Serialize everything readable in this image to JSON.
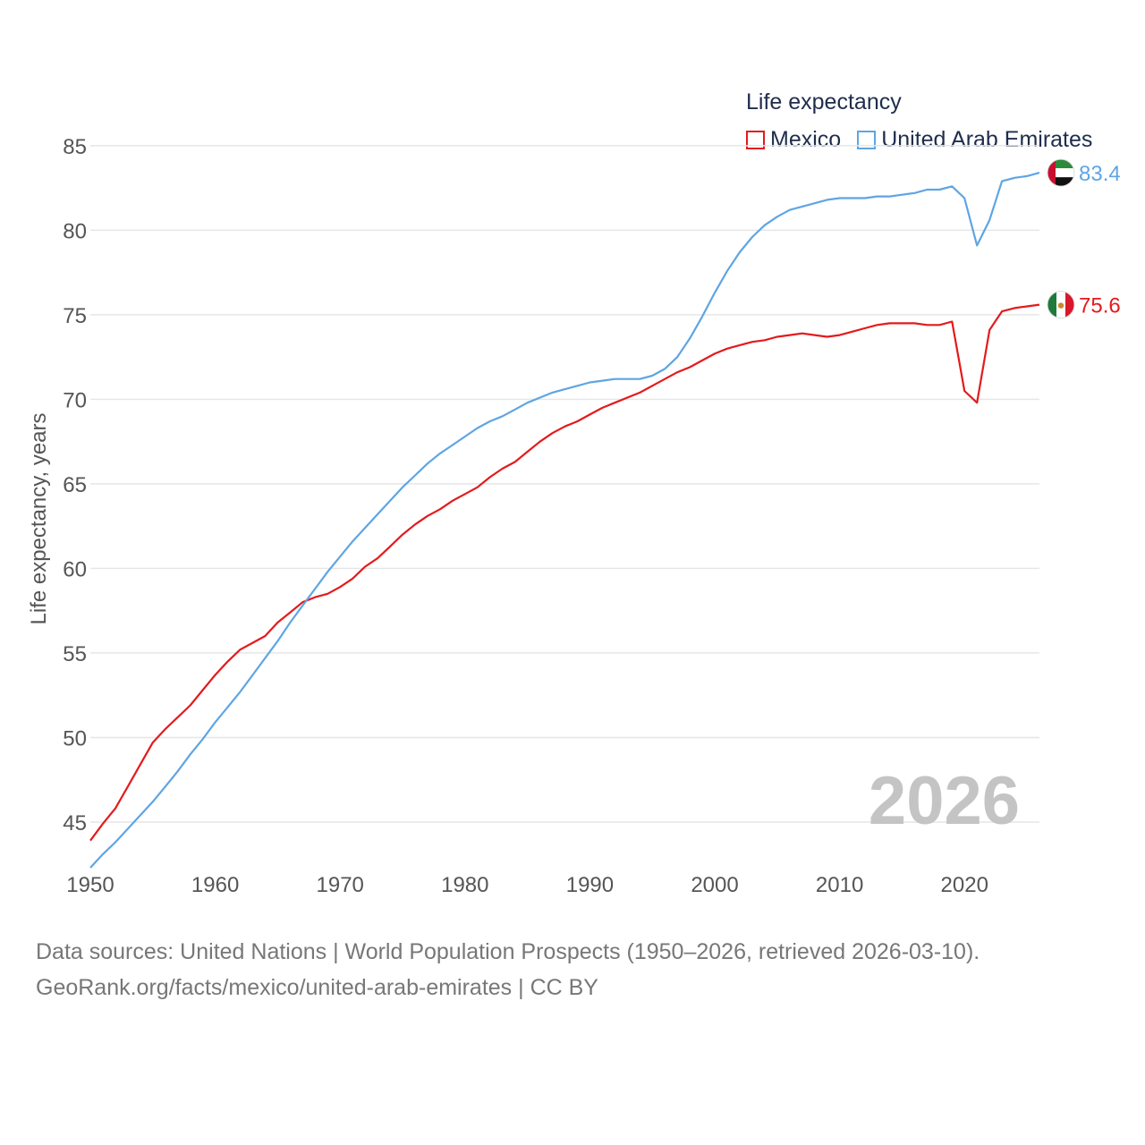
{
  "legend": {
    "title": "Life expectancy",
    "items": [
      {
        "label": "Mexico",
        "color": "#e41a1c"
      },
      {
        "label": "United Arab Emirates",
        "color": "#5ea5e4"
      }
    ]
  },
  "watermark_year": "2026",
  "footer": {
    "line1": "Data sources: United Nations | World Population Prospects (1950–2026, retrieved 2026-03-10).",
    "line2": "GeoRank.org/facts/mexico/united-arab-emirates | CC BY"
  },
  "chart_data": {
    "type": "line",
    "ylabel": "Life expectancy, years",
    "xlim": [
      1950,
      2026
    ],
    "ylim": [
      40.5,
      86
    ],
    "x_ticks": [
      "1950",
      "1960",
      "1970",
      "1980",
      "1990",
      "2000",
      "2010",
      "2020"
    ],
    "y_ticks": [
      "45",
      "50",
      "55",
      "60",
      "65",
      "70",
      "75",
      "80",
      "85"
    ],
    "x": [
      1950,
      1951,
      1952,
      1953,
      1954,
      1955,
      1956,
      1957,
      1958,
      1959,
      1960,
      1961,
      1962,
      1963,
      1964,
      1965,
      1966,
      1967,
      1968,
      1969,
      1970,
      1971,
      1972,
      1973,
      1974,
      1975,
      1976,
      1977,
      1978,
      1979,
      1980,
      1981,
      1982,
      1983,
      1984,
      1985,
      1986,
      1987,
      1988,
      1989,
      1990,
      1991,
      1992,
      1993,
      1994,
      1995,
      1996,
      1997,
      1998,
      1999,
      2000,
      2001,
      2002,
      2003,
      2004,
      2005,
      2006,
      2007,
      2008,
      2009,
      2010,
      2011,
      2012,
      2013,
      2014,
      2015,
      2016,
      2017,
      2018,
      2019,
      2020,
      2021,
      2022,
      2023,
      2024,
      2025,
      2026
    ],
    "series": [
      {
        "name": "Mexico",
        "color": "#e41a1c",
        "end_label": "75.6",
        "values": [
          43.9,
          44.9,
          45.8,
          47.1,
          48.4,
          49.7,
          50.5,
          51.2,
          51.9,
          52.8,
          53.7,
          54.5,
          55.2,
          55.6,
          56.0,
          56.8,
          57.4,
          58.0,
          58.3,
          58.5,
          58.9,
          59.4,
          60.1,
          60.6,
          61.3,
          62.0,
          62.6,
          63.1,
          63.5,
          64.0,
          64.4,
          64.8,
          65.4,
          65.9,
          66.3,
          66.9,
          67.5,
          68.0,
          68.4,
          68.7,
          69.1,
          69.5,
          69.8,
          70.1,
          70.4,
          70.8,
          71.2,
          71.6,
          71.9,
          72.3,
          72.7,
          73.0,
          73.2,
          73.4,
          73.5,
          73.7,
          73.8,
          73.9,
          73.8,
          73.7,
          73.8,
          74.0,
          74.2,
          74.4,
          74.5,
          74.5,
          74.5,
          74.4,
          74.4,
          74.6,
          70.5,
          69.8,
          74.1,
          75.2,
          75.4,
          75.5,
          75.6
        ]
      },
      {
        "name": "United Arab Emirates",
        "color": "#5ea5e4",
        "end_label": "83.4",
        "values": [
          42.3,
          43.1,
          43.8,
          44.6,
          45.4,
          46.2,
          47.1,
          48.0,
          49.0,
          49.9,
          50.9,
          51.8,
          52.7,
          53.7,
          54.7,
          55.7,
          56.8,
          57.8,
          58.8,
          59.8,
          60.7,
          61.6,
          62.4,
          63.2,
          64.0,
          64.8,
          65.5,
          66.2,
          66.8,
          67.3,
          67.8,
          68.3,
          68.7,
          69.0,
          69.4,
          69.8,
          70.1,
          70.4,
          70.6,
          70.8,
          71.0,
          71.1,
          71.2,
          71.2,
          71.2,
          71.4,
          71.8,
          72.5,
          73.6,
          74.9,
          76.3,
          77.6,
          78.7,
          79.6,
          80.3,
          80.8,
          81.2,
          81.4,
          81.6,
          81.8,
          81.9,
          81.9,
          81.9,
          82.0,
          82.0,
          82.1,
          82.2,
          82.4,
          82.4,
          82.6,
          81.9,
          79.1,
          80.6,
          82.9,
          83.1,
          83.2,
          83.4
        ]
      }
    ]
  },
  "flag_icons": [
    "uae-flag-icon",
    "mexico-flag-icon"
  ]
}
